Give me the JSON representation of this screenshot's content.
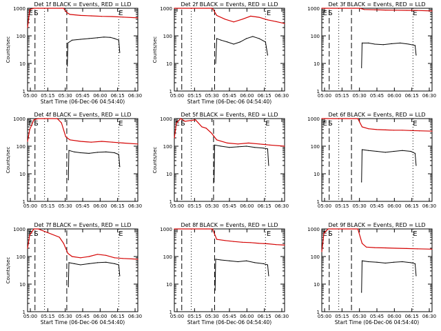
{
  "colors": {
    "events": "#000000",
    "lld": "#d40000",
    "axis": "#000000",
    "background": "#ffffff"
  },
  "chart_data": [
    {
      "type": "line",
      "title": "Det 1f BLACK = Events, RED = LLD",
      "xlabel": "Start Time (06-Dec-06 04:54:40)",
      "ylabel": "Counts/sec",
      "yscale": "log",
      "ylim": [
        1,
        1000
      ],
      "xlim_minutes": [
        290,
        394
      ],
      "x_tick_labels": [
        "05:00",
        "05:15",
        "05:30",
        "05:45",
        "06:00",
        "06:15",
        "06:30"
      ],
      "y_tick_labels": [
        "1",
        "10",
        "100",
        "1000"
      ],
      "markers": [
        {
          "text": "E",
          "minute": 291
        },
        {
          "text": "S",
          "minute": 296
        },
        {
          "text": "E",
          "minute": 376
        }
      ],
      "vlines_dashed_minutes": [
        297,
        327
      ],
      "vlines_dotted_minutes": [
        306,
        376
      ],
      "series": [
        {
          "name": "Events",
          "color": "#000000",
          "x": [
            327.5,
            328,
            332,
            340,
            348,
            356,
            362,
            368,
            372,
            376,
            377
          ],
          "y": [
            8,
            55,
            70,
            75,
            80,
            85,
            90,
            88,
            80,
            70,
            25
          ]
        },
        {
          "name": "LLD",
          "color": "#d40000",
          "x": [
            290,
            292,
            296,
            300,
            320,
            324,
            327,
            330,
            340,
            350,
            360,
            370,
            380,
            394
          ],
          "y": [
            200,
            900,
            1000,
            1000,
            1000,
            1000,
            700,
            600,
            550,
            530,
            510,
            500,
            480,
            450
          ]
        }
      ]
    },
    {
      "type": "line",
      "title": "Det 2f BLACK = Events, RED = LLD",
      "xlabel": "Start Time (06-Dec-06 04:54:40)",
      "ylabel": "Counts/sec",
      "yscale": "log",
      "ylim": [
        1,
        1000
      ],
      "xlim_minutes": [
        290,
        394
      ],
      "x_tick_labels": [
        "05:00",
        "05:15",
        "05:30",
        "05:45",
        "06:00",
        "06:15",
        "06:30"
      ],
      "y_tick_labels": [
        "1",
        "10",
        "100",
        "1000"
      ],
      "markers": [
        {
          "text": "E",
          "minute": 377
        }
      ],
      "vlines_dashed_minutes": [
        297,
        328
      ],
      "vlines_dotted_minutes": [
        306,
        376
      ],
      "series": [
        {
          "name": "Events",
          "color": "#000000",
          "x": [
            329,
            330,
            334,
            340,
            346,
            352,
            358,
            364,
            370,
            376,
            378
          ],
          "y": [
            10,
            80,
            70,
            60,
            50,
            60,
            80,
            95,
            80,
            60,
            20
          ]
        },
        {
          "name": "LLD",
          "color": "#d40000",
          "x": [
            290,
            320,
            326,
            330,
            338,
            346,
            354,
            362,
            370,
            378,
            386,
            394
          ],
          "y": [
            1000,
            1000,
            1000,
            550,
            400,
            320,
            400,
            520,
            470,
            380,
            330,
            280
          ]
        }
      ]
    },
    {
      "type": "line",
      "title": "Det 3f BLACK = Events, RED = LLD",
      "xlabel": "",
      "ylabel": "",
      "yscale": "log",
      "ylim": [
        1,
        1000
      ],
      "xlim_minutes": [
        290,
        394
      ],
      "x_tick_labels": [
        "05:00",
        "05:15",
        "05:30",
        "05:45",
        "06:00",
        "06:15",
        "06:30"
      ],
      "y_tick_labels": [
        "1",
        "10",
        "100",
        "1000"
      ],
      "markers": [
        {
          "text": "E",
          "minute": 291
        },
        {
          "text": "S",
          "minute": 296
        },
        {
          "text": "E",
          "minute": 376
        }
      ],
      "vlines_dashed_minutes": [
        297,
        318
      ],
      "vlines_dotted_minutes": [
        306,
        376
      ],
      "series": [
        {
          "name": "Events",
          "color": "#000000",
          "x": [
            327.5,
            328,
            334,
            340,
            348,
            356,
            364,
            372,
            378,
            379
          ],
          "y": [
            7,
            55,
            55,
            50,
            48,
            52,
            55,
            50,
            45,
            20
          ]
        },
        {
          "name": "LLD",
          "color": "#d40000",
          "x": [
            290,
            320,
            326,
            330,
            340,
            350,
            360,
            370,
            380,
            394
          ],
          "y": [
            1000,
            1000,
            1000,
            900,
            880,
            860,
            850,
            840,
            830,
            800
          ]
        }
      ]
    },
    {
      "type": "line",
      "title": "Det 4f BLACK = Events, RED = LLD",
      "xlabel": "",
      "ylabel": "Counts/sec",
      "yscale": "log",
      "ylim": [
        1,
        1000
      ],
      "xlim_minutes": [
        290,
        394
      ],
      "x_tick_labels": [
        "05:00",
        "05:15",
        "05:30",
        "05:45",
        "06:00",
        "06:15",
        "06:30"
      ],
      "y_tick_labels": [
        "1",
        "10",
        "100",
        "1000"
      ],
      "markers": [
        {
          "text": "E",
          "minute": 291
        },
        {
          "text": "S",
          "minute": 296
        },
        {
          "text": "E",
          "minute": 376
        }
      ],
      "vlines_dashed_minutes": [
        297,
        327
      ],
      "vlines_dotted_minutes": [
        306,
        376
      ],
      "series": [
        {
          "name": "Events",
          "color": "#000000",
          "x": [
            328.5,
            329,
            334,
            340,
            348,
            356,
            364,
            372,
            376,
            377
          ],
          "y": [
            6,
            70,
            62,
            58,
            55,
            60,
            62,
            58,
            50,
            18
          ]
        },
        {
          "name": "LLD",
          "color": "#d40000",
          "x": [
            290,
            292,
            296,
            300,
            318,
            322,
            326,
            330,
            340,
            350,
            360,
            370,
            380,
            394
          ],
          "y": [
            150,
            400,
            900,
            1000,
            1000,
            700,
            220,
            170,
            150,
            140,
            150,
            140,
            130,
            120
          ]
        }
      ]
    },
    {
      "type": "line",
      "title": "Det 5f BLACK = Events, RED = LLD",
      "xlabel": "",
      "ylabel": "Counts/sec",
      "yscale": "log",
      "ylim": [
        1,
        1000
      ],
      "xlim_minutes": [
        290,
        394
      ],
      "x_tick_labels": [
        "05:00",
        "05:15",
        "05:30",
        "05:45",
        "06:00",
        "06:15",
        "06:30"
      ],
      "y_tick_labels": [
        "1",
        "10",
        "100",
        "1000"
      ],
      "markers": [
        {
          "text": "E",
          "minute": 291
        },
        {
          "text": "S",
          "minute": 296
        },
        {
          "text": "E",
          "minute": 376
        }
      ],
      "vlines_dashed_minutes": [
        297,
        327
      ],
      "vlines_dotted_minutes": [
        306,
        376
      ],
      "series": [
        {
          "name": "Events",
          "color": "#000000",
          "x": [
            327.5,
            328,
            334,
            342,
            350,
            358,
            366,
            374,
            378,
            379
          ],
          "y": [
            5,
            110,
            100,
            90,
            95,
            100,
            90,
            85,
            80,
            20
          ]
        },
        {
          "name": "LLD",
          "color": "#d40000",
          "x": [
            290,
            292,
            296,
            300,
            310,
            316,
            320,
            325,
            330,
            340,
            350,
            360,
            370,
            380,
            394
          ],
          "y": [
            200,
            700,
            1000,
            800,
            900,
            500,
            450,
            300,
            170,
            130,
            120,
            130,
            120,
            110,
            100
          ]
        }
      ]
    },
    {
      "type": "line",
      "title": "Det 6f BLACK = Events, RED = LLD",
      "xlabel": "",
      "ylabel": "",
      "yscale": "log",
      "ylim": [
        1,
        1000
      ],
      "xlim_minutes": [
        290,
        394
      ],
      "x_tick_labels": [
        "05:00",
        "05:15",
        "05:30",
        "05:45",
        "06:00",
        "06:15",
        "06:30"
      ],
      "y_tick_labels": [
        "1",
        "10",
        "100",
        "1000"
      ],
      "markers": [
        {
          "text": "E",
          "minute": 291
        },
        {
          "text": "S",
          "minute": 296
        },
        {
          "text": "E",
          "minute": 376
        }
      ],
      "vlines_dashed_minutes": [
        297,
        318
      ],
      "vlines_dotted_minutes": [
        306,
        376
      ],
      "series": [
        {
          "name": "Events",
          "color": "#000000",
          "x": [
            327.5,
            328,
            334,
            342,
            350,
            358,
            366,
            374,
            378,
            379
          ],
          "y": [
            5,
            75,
            70,
            65,
            60,
            65,
            70,
            65,
            55,
            20
          ]
        },
        {
          "name": "LLD",
          "color": "#d40000",
          "x": [
            290,
            320,
            324,
            328,
            334,
            342,
            350,
            358,
            366,
            374,
            382,
            394
          ],
          "y": [
            1000,
            1000,
            1000,
            500,
            430,
            400,
            390,
            380,
            380,
            370,
            360,
            350
          ]
        }
      ]
    },
    {
      "type": "line",
      "title": "Det 7f BLACK = Events, RED = LLD",
      "xlabel": "Start Time (06-Dec-06 04:54:40)",
      "ylabel": "Counts/sec",
      "yscale": "log",
      "ylim": [
        1,
        1000
      ],
      "xlim_minutes": [
        290,
        394
      ],
      "x_tick_labels": [
        "05:00",
        "05:15",
        "05:30",
        "05:45",
        "06:00",
        "06:15",
        "06:30"
      ],
      "y_tick_labels": [
        "1",
        "10",
        "100",
        "1000"
      ],
      "markers": [
        {
          "text": "E",
          "minute": 291
        },
        {
          "text": "S",
          "minute": 296
        },
        {
          "text": "E",
          "minute": 376
        }
      ],
      "vlines_dashed_minutes": [
        297,
        327
      ],
      "vlines_dotted_minutes": [
        306,
        376
      ],
      "series": [
        {
          "name": "Events",
          "color": "#000000",
          "x": [
            328.5,
            329,
            334,
            340,
            348,
            356,
            364,
            372,
            376,
            377
          ],
          "y": [
            8,
            60,
            55,
            50,
            55,
            60,
            62,
            55,
            50,
            20
          ]
        },
        {
          "name": "LLD",
          "color": "#d40000",
          "x": [
            290,
            292,
            296,
            300,
            320,
            324,
            328,
            332,
            340,
            348,
            356,
            364,
            372,
            380,
            394
          ],
          "y": [
            200,
            600,
            1000,
            1000,
            500,
            300,
            130,
            100,
            90,
            100,
            120,
            110,
            90,
            85,
            80
          ]
        }
      ]
    },
    {
      "type": "line",
      "title": "Det 8f BLACK = Events, RED = LLD",
      "xlabel": "Start Time (06-Dec-06 04:54:40)",
      "ylabel": "",
      "yscale": "log",
      "ylim": [
        1,
        1000
      ],
      "xlim_minutes": [
        290,
        394
      ],
      "x_tick_labels": [
        "05:00",
        "05:15",
        "05:30",
        "05:45",
        "06:00",
        "06:15",
        "06:30"
      ],
      "y_tick_labels": [
        "1",
        "10",
        "100",
        "1000"
      ],
      "markers": [
        {
          "text": "E",
          "minute": 377
        }
      ],
      "vlines_dashed_minutes": [
        297,
        328
      ],
      "vlines_dotted_minutes": [
        306,
        376
      ],
      "series": [
        {
          "name": "Events",
          "color": "#000000",
          "x": [
            328.5,
            329,
            334,
            342,
            350,
            358,
            366,
            374,
            378,
            379
          ],
          "y": [
            6,
            80,
            75,
            70,
            65,
            70,
            60,
            55,
            50,
            20
          ]
        },
        {
          "name": "LLD",
          "color": "#d40000",
          "x": [
            290,
            320,
            326,
            330,
            338,
            346,
            354,
            362,
            370,
            378,
            386,
            394
          ],
          "y": [
            1000,
            1000,
            1000,
            420,
            380,
            350,
            330,
            320,
            300,
            290,
            270,
            260
          ]
        }
      ]
    },
    {
      "type": "line",
      "title": "Det 9f BLACK = Events, RED = LLD",
      "xlabel": "Start Time (06-Dec-06 04:54:40)",
      "ylabel": "",
      "yscale": "log",
      "ylim": [
        1,
        1000
      ],
      "xlim_minutes": [
        290,
        394
      ],
      "x_tick_labels": [
        "05:00",
        "05:15",
        "05:30",
        "05:45",
        "06:00",
        "06:15",
        "06:30"
      ],
      "y_tick_labels": [
        "1",
        "10",
        "100",
        "1000"
      ],
      "markers": [
        {
          "text": "E",
          "minute": 291
        },
        {
          "text": "S",
          "minute": 296
        },
        {
          "text": "E",
          "minute": 376
        }
      ],
      "vlines_dashed_minutes": [
        297,
        318
      ],
      "vlines_dotted_minutes": [
        306,
        376
      ],
      "series": [
        {
          "name": "Events",
          "color": "#000000",
          "x": [
            327.5,
            328,
            334,
            342,
            350,
            358,
            366,
            374,
            378,
            379
          ],
          "y": [
            5,
            70,
            65,
            62,
            58,
            62,
            65,
            60,
            55,
            20
          ]
        },
        {
          "name": "LLD",
          "color": "#d40000",
          "x": [
            290,
            292,
            296,
            300,
            320,
            324,
            328,
            332,
            340,
            350,
            360,
            370,
            380,
            394
          ],
          "y": [
            150,
            700,
            1000,
            1000,
            1000,
            1000,
            300,
            220,
            210,
            205,
            200,
            195,
            190,
            185
          ]
        }
      ]
    }
  ]
}
